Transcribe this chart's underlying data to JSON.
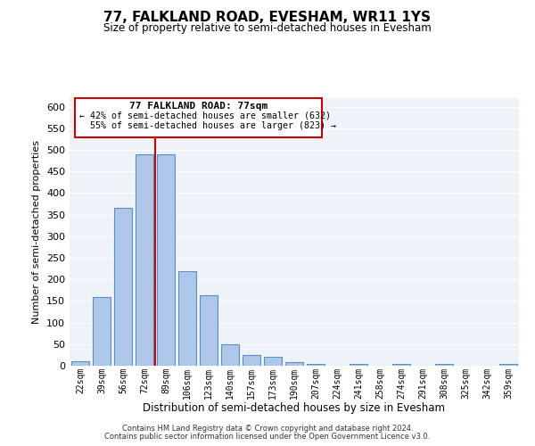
{
  "title": "77, FALKLAND ROAD, EVESHAM, WR11 1YS",
  "subtitle": "Size of property relative to semi-detached houses in Evesham",
  "xlabel": "Distribution of semi-detached houses by size in Evesham",
  "ylabel": "Number of semi-detached properties",
  "categories": [
    "22sqm",
    "39sqm",
    "56sqm",
    "72sqm",
    "89sqm",
    "106sqm",
    "123sqm",
    "140sqm",
    "157sqm",
    "173sqm",
    "190sqm",
    "207sqm",
    "224sqm",
    "241sqm",
    "258sqm",
    "274sqm",
    "291sqm",
    "308sqm",
    "325sqm",
    "342sqm",
    "359sqm"
  ],
  "values": [
    10,
    160,
    365,
    490,
    490,
    220,
    163,
    50,
    25,
    20,
    8,
    5,
    0,
    5,
    0,
    5,
    0,
    5,
    0,
    0,
    5
  ],
  "bar_color": "#aec6e8",
  "bar_edge_color": "#5a8fc0",
  "property_label": "77 FALKLAND ROAD: 77sqm",
  "pct_smaller": "42%",
  "pct_larger": "55%",
  "n_smaller": 632,
  "n_larger": 823,
  "annotation_box_color": "#cc0000",
  "ylim": [
    0,
    620
  ],
  "yticks": [
    0,
    50,
    100,
    150,
    200,
    250,
    300,
    350,
    400,
    450,
    500,
    550,
    600
  ],
  "background_color": "#eef2f9",
  "grid_color": "#ffffff",
  "footer1": "Contains HM Land Registry data © Crown copyright and database right 2024.",
  "footer2": "Contains public sector information licensed under the Open Government Licence v3.0."
}
